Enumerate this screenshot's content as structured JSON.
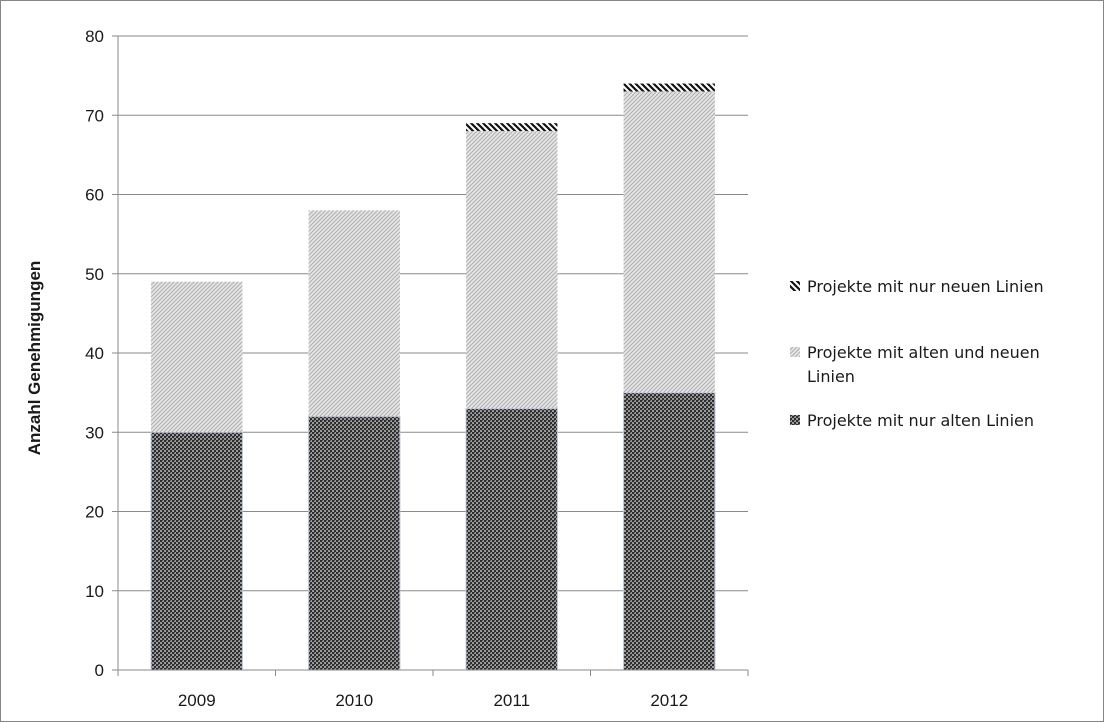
{
  "chart_data": {
    "type": "bar",
    "stacked": true,
    "categories": [
      "2009",
      "2010",
      "2011",
      "2012"
    ],
    "series": [
      {
        "name": "Projekte mit nur alten Linien",
        "values": [
          30,
          32,
          33,
          35
        ]
      },
      {
        "name": "Projekte mit alten und neuen Linien",
        "values": [
          19,
          26,
          35,
          38
        ]
      },
      {
        "name": "Projekte mit nur neuen Linien",
        "values": [
          0,
          0,
          1,
          1
        ]
      }
    ],
    "legend_order": [
      2,
      1,
      0
    ],
    "ylabel": "Anzahl Genehmigungen",
    "ylim": [
      0,
      80
    ],
    "yticks": [
      "0",
      "10",
      "20",
      "30",
      "40",
      "50",
      "60",
      "70",
      "80"
    ],
    "grid": "horizontal",
    "legend_position": "right",
    "colors": {
      "dark": "#3a3a3a",
      "medium": "#cfcfcf",
      "stripe": "#111111",
      "grid": "#8a8a8a"
    }
  }
}
